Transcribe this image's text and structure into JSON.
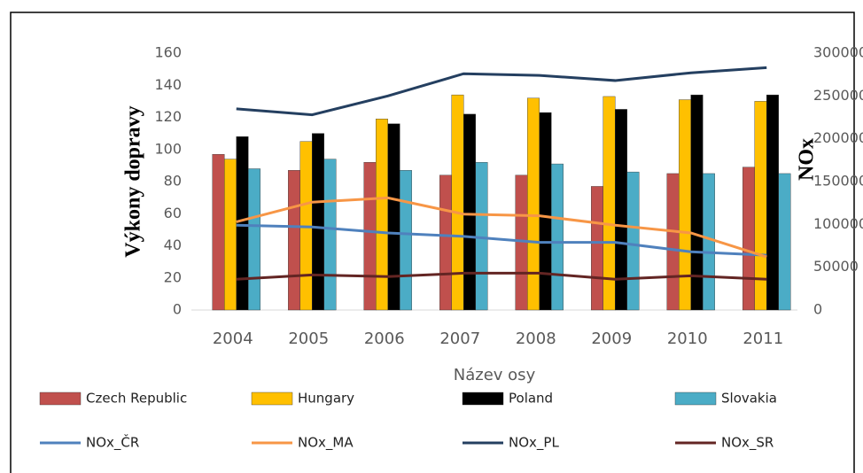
{
  "chart_data": {
    "type": "bar_line",
    "categories": [
      "2004",
      "2005",
      "2006",
      "2007",
      "2008",
      "2009",
      "2010",
      "2011"
    ],
    "x_label": "Název osy",
    "y_label": "Výkony dopravy",
    "y2_label": "NOx",
    "series": [
      {
        "name": "Czech Republic",
        "color": "#c0504d",
        "type": "bar",
        "values": [
          97,
          87,
          92,
          84,
          84,
          77,
          85,
          89
        ]
      },
      {
        "name": "Hungary",
        "color": "#ffc000",
        "type": "bar",
        "values": [
          94,
          105,
          119,
          134,
          132,
          133,
          131,
          130
        ]
      },
      {
        "name": "Poland",
        "color": "#000000",
        "type": "bar",
        "values": [
          108,
          110,
          116,
          122,
          123,
          125,
          134,
          134
        ]
      },
      {
        "name": "Slovakia",
        "color": "#4bacc6",
        "type": "bar",
        "values": [
          88,
          94,
          87,
          92,
          91,
          86,
          85,
          85
        ]
      },
      {
        "name": "NOx_ČR",
        "color": "#4f81bd",
        "type": "line",
        "axis": "y2",
        "values": [
          99000,
          97000,
          90000,
          86000,
          79000,
          79000,
          68000,
          64000
        ]
      },
      {
        "name": "NOx_MA",
        "color": "#f79646",
        "type": "line",
        "axis": "y2",
        "values": [
          103000,
          126000,
          131000,
          112000,
          110000,
          99000,
          90000,
          62000
        ]
      },
      {
        "name": "NOx_PL",
        "color": "#243f60",
        "type": "line",
        "axis": "y2",
        "values": [
          235000,
          228000,
          250000,
          276000,
          274000,
          268000,
          277000,
          283000
        ]
      },
      {
        "name": "NOx_SR",
        "color": "#632523",
        "type": "line",
        "axis": "y2",
        "values": [
          36000,
          41000,
          39000,
          43000,
          43000,
          36000,
          40000,
          36000
        ]
      }
    ],
    "ylim": [
      0,
      160
    ],
    "yticks": [
      0,
      20,
      40,
      60,
      80,
      100,
      120,
      140,
      160
    ],
    "y2lim": [
      0,
      300000
    ],
    "y2ticks": [
      0,
      50000,
      100000,
      150000,
      200000,
      250000,
      300000
    ],
    "grid": false,
    "legend": "bottom"
  }
}
